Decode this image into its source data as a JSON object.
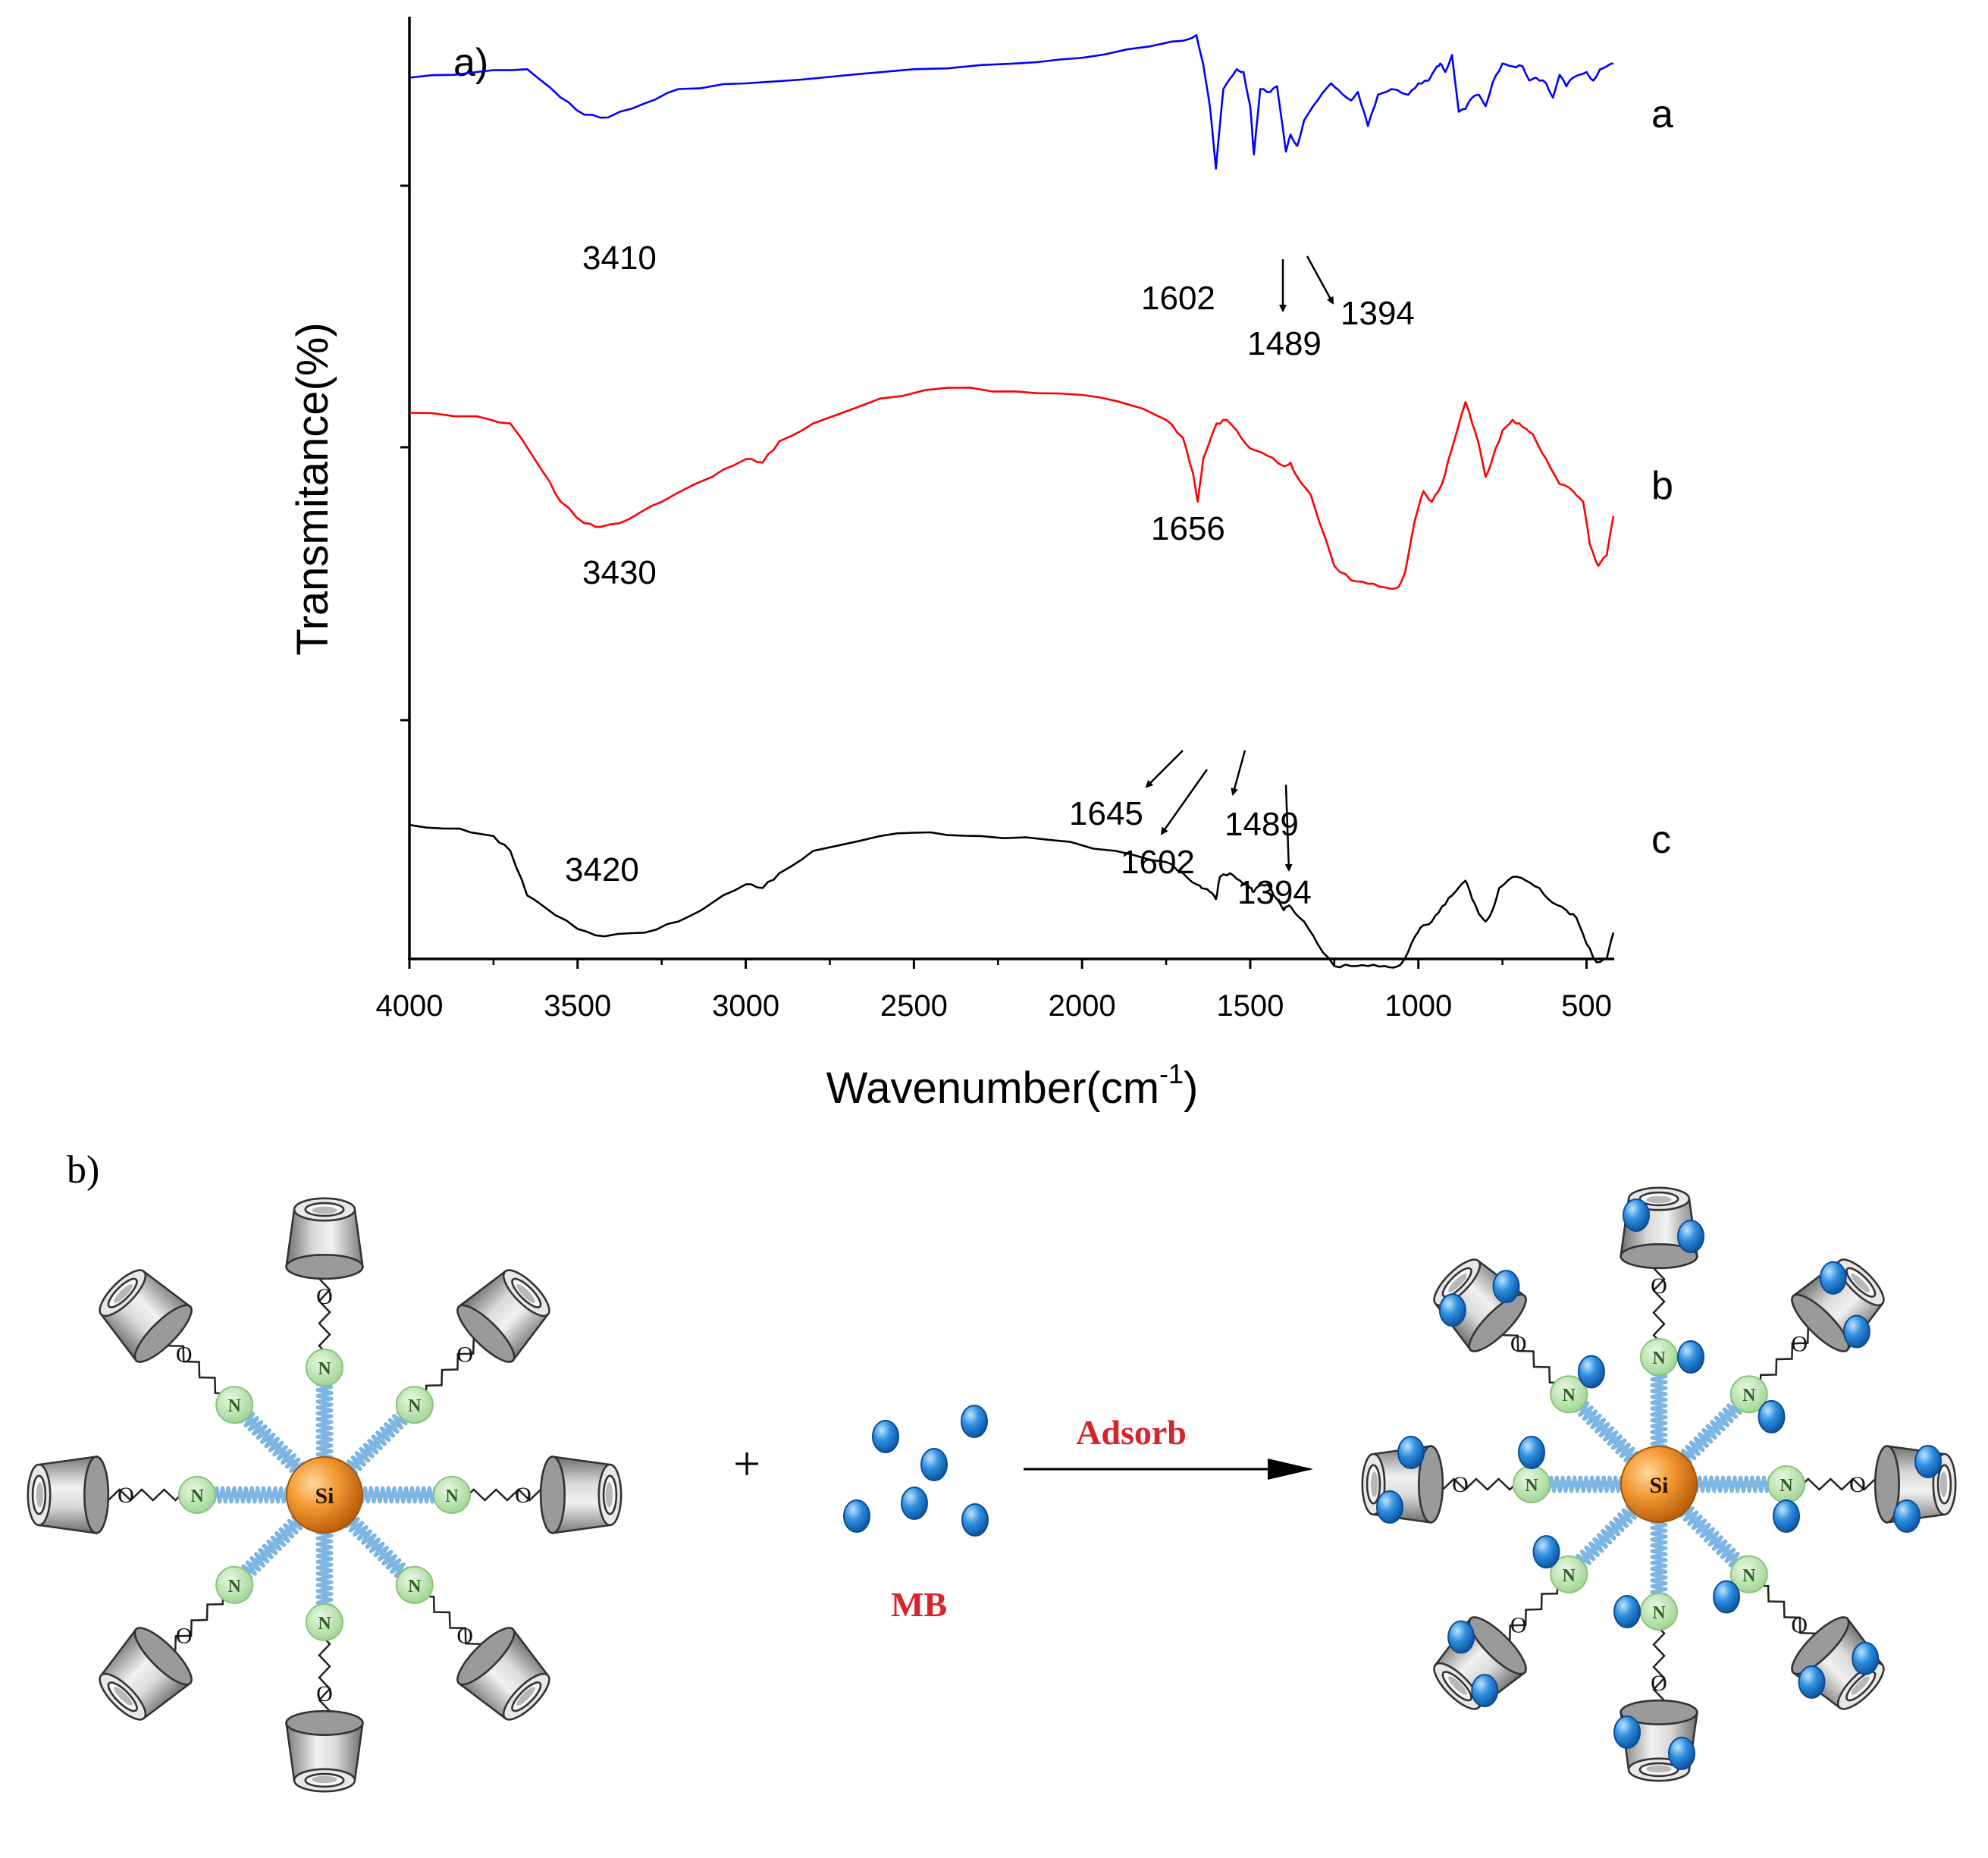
{
  "chart_data": [
    {
      "type": "line",
      "panel_label": "a)",
      "xlabel": "Wavenumber(cm",
      "xlabel_sup": "-1",
      "xlabel_close": ")",
      "ylabel": "Transmitance(%)",
      "xlim": [
        4000,
        420
      ],
      "xreversed": true,
      "x_ticks": [
        4000,
        3500,
        3000,
        2500,
        2000,
        1500,
        1000,
        500
      ],
      "x_tick_labels": [
        "4000",
        "3500",
        "3000",
        "2500",
        "2000",
        "1500",
        "1000",
        "500"
      ],
      "grid": false,
      "y_tick_labels_shown": false,
      "series": [
        {
          "name": "a",
          "color": "#0000ff",
          "points": [
            [
              4000,
              0.9
            ],
            [
              3800,
              0.92
            ],
            [
              3650,
              0.93
            ],
            [
              3550,
              0.83
            ],
            [
              3480,
              0.77
            ],
            [
              3410,
              0.76
            ],
            [
              3300,
              0.81
            ],
            [
              3200,
              0.86
            ],
            [
              3000,
              0.88
            ],
            [
              2500,
              0.93
            ],
            [
              2200,
              0.95
            ],
            [
              2000,
              0.97
            ],
            [
              1800,
              1.01
            ],
            [
              1700,
              1.03
            ],
            [
              1660,
              1.05
            ],
            [
              1640,
              0.95
            ],
            [
              1620,
              0.8
            ],
            [
              1602,
              0.58
            ],
            [
              1580,
              0.86
            ],
            [
              1540,
              0.93
            ],
            [
              1520,
              0.92
            ],
            [
              1500,
              0.8
            ],
            [
              1489,
              0.63
            ],
            [
              1470,
              0.86
            ],
            [
              1440,
              0.85
            ],
            [
              1420,
              0.87
            ],
            [
              1410,
              0.78
            ],
            [
              1394,
              0.64
            ],
            [
              1380,
              0.7
            ],
            [
              1360,
              0.66
            ],
            [
              1340,
              0.75
            ],
            [
              1300,
              0.82
            ],
            [
              1260,
              0.88
            ],
            [
              1240,
              0.86
            ],
            [
              1200,
              0.82
            ],
            [
              1180,
              0.85
            ],
            [
              1150,
              0.73
            ],
            [
              1120,
              0.84
            ],
            [
              1080,
              0.86
            ],
            [
              1030,
              0.84
            ],
            [
              1000,
              0.88
            ],
            [
              970,
              0.89
            ],
            [
              950,
              0.93
            ],
            [
              935,
              0.95
            ],
            [
              920,
              0.92
            ],
            [
              900,
              0.98
            ],
            [
              880,
              0.78
            ],
            [
              860,
              0.79
            ],
            [
              840,
              0.83
            ],
            [
              820,
              0.84
            ],
            [
              800,
              0.8
            ],
            [
              780,
              0.88
            ],
            [
              750,
              0.95
            ],
            [
              720,
              0.94
            ],
            [
              690,
              0.94
            ],
            [
              670,
              0.89
            ],
            [
              650,
              0.9
            ],
            [
              620,
              0.88
            ],
            [
              600,
              0.83
            ],
            [
              580,
              0.91
            ],
            [
              560,
              0.87
            ],
            [
              540,
              0.9
            ],
            [
              500,
              0.92
            ],
            [
              480,
              0.89
            ],
            [
              460,
              0.93
            ],
            [
              440,
              0.94
            ],
            [
              420,
              0.95
            ]
          ]
        },
        {
          "name": "b",
          "color": "#ff0000",
          "points": [
            [
              4000,
              0.65
            ],
            [
              3800,
              0.64
            ],
            [
              3700,
              0.62
            ],
            [
              3600,
              0.48
            ],
            [
              3550,
              0.4
            ],
            [
              3480,
              0.34
            ],
            [
              3430,
              0.33
            ],
            [
              3350,
              0.35
            ],
            [
              3250,
              0.4
            ],
            [
              3100,
              0.47
            ],
            [
              3000,
              0.52
            ],
            [
              2950,
              0.51
            ],
            [
              2900,
              0.57
            ],
            [
              2800,
              0.62
            ],
            [
              2600,
              0.69
            ],
            [
              2400,
              0.72
            ],
            [
              2200,
              0.71
            ],
            [
              2000,
              0.7
            ],
            [
              1850,
              0.67
            ],
            [
              1750,
              0.63
            ],
            [
              1700,
              0.58
            ],
            [
              1670,
              0.48
            ],
            [
              1656,
              0.4
            ],
            [
              1640,
              0.52
            ],
            [
              1600,
              0.62
            ],
            [
              1570,
              0.63
            ],
            [
              1540,
              0.6
            ],
            [
              1500,
              0.55
            ],
            [
              1450,
              0.53
            ],
            [
              1400,
              0.5
            ],
            [
              1380,
              0.51
            ],
            [
              1360,
              0.47
            ],
            [
              1320,
              0.42
            ],
            [
              1250,
              0.22
            ],
            [
              1200,
              0.18
            ],
            [
              1150,
              0.17
            ],
            [
              1100,
              0.16
            ],
            [
              1060,
              0.16
            ],
            [
              1040,
              0.2
            ],
            [
              1010,
              0.35
            ],
            [
              985,
              0.43
            ],
            [
              960,
              0.4
            ],
            [
              930,
              0.45
            ],
            [
              900,
              0.55
            ],
            [
              860,
              0.68
            ],
            [
              840,
              0.62
            ],
            [
              820,
              0.56
            ],
            [
              800,
              0.47
            ],
            [
              780,
              0.52
            ],
            [
              750,
              0.6
            ],
            [
              720,
              0.63
            ],
            [
              690,
              0.61
            ],
            [
              660,
              0.59
            ],
            [
              620,
              0.52
            ],
            [
              580,
              0.45
            ],
            [
              540,
              0.43
            ],
            [
              510,
              0.4
            ],
            [
              490,
              0.28
            ],
            [
              465,
              0.22
            ],
            [
              440,
              0.25
            ],
            [
              420,
              0.36
            ]
          ]
        },
        {
          "name": "c",
          "color": "#000000",
          "points": [
            [
              4000,
              0.32
            ],
            [
              3850,
              0.31
            ],
            [
              3750,
              0.29
            ],
            [
              3700,
              0.25
            ],
            [
              3650,
              0.13
            ],
            [
              3600,
              0.1
            ],
            [
              3500,
              0.04
            ],
            [
              3420,
              0.02
            ],
            [
              3300,
              0.03
            ],
            [
              3200,
              0.06
            ],
            [
              3100,
              0.11
            ],
            [
              3000,
              0.16
            ],
            [
              2950,
              0.15
            ],
            [
              2900,
              0.19
            ],
            [
              2800,
              0.25
            ],
            [
              2600,
              0.29
            ],
            [
              2450,
              0.3
            ],
            [
              2300,
              0.29
            ],
            [
              2100,
              0.28
            ],
            [
              1900,
              0.25
            ],
            [
              1750,
              0.22
            ],
            [
              1700,
              0.19
            ],
            [
              1660,
              0.16
            ],
            [
              1645,
              0.15
            ],
            [
              1620,
              0.14
            ],
            [
              1602,
              0.12
            ],
            [
              1590,
              0.18
            ],
            [
              1560,
              0.19
            ],
            [
              1530,
              0.17
            ],
            [
              1500,
              0.15
            ],
            [
              1489,
              0.14
            ],
            [
              1470,
              0.16
            ],
            [
              1450,
              0.16
            ],
            [
              1420,
              0.12
            ],
            [
              1400,
              0.09
            ],
            [
              1394,
              0.1
            ],
            [
              1380,
              0.1
            ],
            [
              1340,
              0.06
            ],
            [
              1300,
              0.0
            ],
            [
              1250,
              -0.06
            ],
            [
              1200,
              -0.06
            ],
            [
              1150,
              -0.06
            ],
            [
              1100,
              -0.06
            ],
            [
              1060,
              -0.06
            ],
            [
              1040,
              -0.04
            ],
            [
              1010,
              0.02
            ],
            [
              985,
              0.05
            ],
            [
              960,
              0.06
            ],
            [
              930,
              0.1
            ],
            [
              900,
              0.13
            ],
            [
              860,
              0.17
            ],
            [
              840,
              0.12
            ],
            [
              820,
              0.08
            ],
            [
              800,
              0.06
            ],
            [
              780,
              0.09
            ],
            [
              760,
              0.15
            ],
            [
              720,
              0.18
            ],
            [
              680,
              0.17
            ],
            [
              640,
              0.15
            ],
            [
              600,
              0.11
            ],
            [
              560,
              0.09
            ],
            [
              530,
              0.07
            ],
            [
              500,
              0.0
            ],
            [
              470,
              -0.05
            ],
            [
              440,
              -0.04
            ],
            [
              420,
              0.03
            ]
          ]
        }
      ],
      "series_labels": [
        "a",
        "b",
        "c"
      ],
      "annotations": [
        "3410",
        "1602",
        "1489",
        "1394",
        "3430",
        "1656",
        "3420",
        "1645",
        "1602",
        "1489",
        "1394"
      ]
    },
    {
      "type": "diagram",
      "panel_label": "b)",
      "core_label": "Si",
      "linker_label": "N",
      "oxygen_label": "O",
      "plus_sign": "+",
      "arrow_label": "Adsorb",
      "adsorbate_label": "MB"
    }
  ]
}
